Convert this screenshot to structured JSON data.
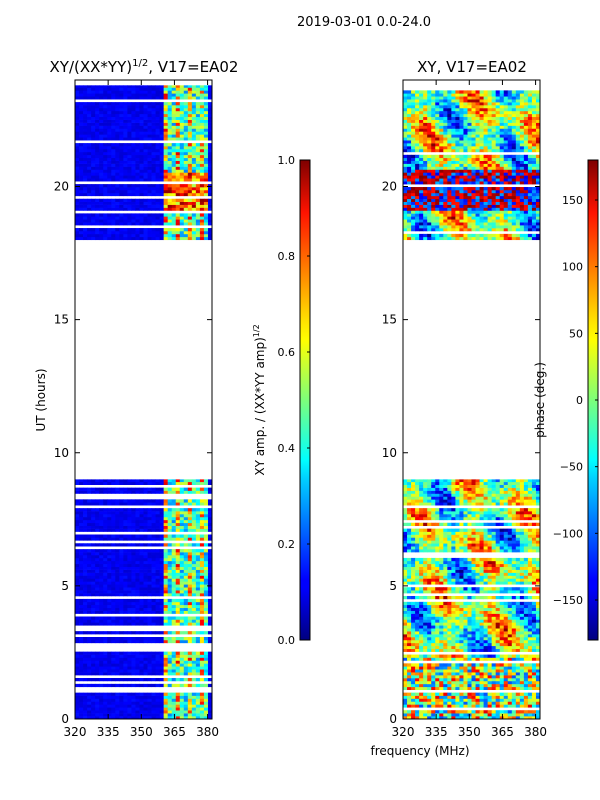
{
  "figure": {
    "suptitle": "2019-03-01 0.0-24.0",
    "xlabel_shared": "frequency (MHz)"
  },
  "chart_data": [
    {
      "type": "heatmap",
      "title_main": "XY/(XX*YY)",
      "title_sup": "1/2",
      "title_rest": ", V17=EA02",
      "xlabel": "",
      "ylabel": "UT (hours)",
      "xlim": [
        320,
        382
      ],
      "ylim": [
        0,
        24
      ],
      "xticks": [
        "320",
        "335",
        "350",
        "365",
        "380"
      ],
      "xtick_values": [
        320,
        335,
        350,
        365,
        380
      ],
      "yticks": [
        "0",
        "5",
        "10",
        "15",
        "20"
      ],
      "ytick_values": [
        0,
        5,
        10,
        15,
        20
      ],
      "data_hour_ranges": [
        [
          0.0,
          9.0
        ],
        [
          18.0,
          23.8
        ]
      ],
      "gap_hour_ranges": [
        [
          9.0,
          18.0
        ]
      ],
      "colorbar": {
        "label_main": "XY amp. / (XX*YY amp)",
        "label_sup": "1/2",
        "range": [
          0.0,
          1.0
        ],
        "ticks": [
          "0.0",
          "0.2",
          "0.4",
          "0.6",
          "0.8",
          "1.0"
        ],
        "tick_values": [
          0.0,
          0.2,
          0.4,
          0.6,
          0.8,
          1.0
        ],
        "colormap": "jet"
      }
    },
    {
      "type": "heatmap",
      "title": "XY, V17=EA02",
      "xlabel": "frequency (MHz)",
      "ylabel": "",
      "xlim": [
        320,
        382
      ],
      "ylim": [
        0,
        24
      ],
      "xticks": [
        "320",
        "335",
        "350",
        "365",
        "380"
      ],
      "xtick_values": [
        320,
        335,
        350,
        365,
        380
      ],
      "yticks": [
        "0",
        "5",
        "10",
        "15",
        "20"
      ],
      "ytick_values": [
        0,
        5,
        10,
        15,
        20
      ],
      "data_hour_ranges": [
        [
          0.0,
          9.0
        ],
        [
          18.0,
          23.8
        ]
      ],
      "gap_hour_ranges": [
        [
          9.0,
          18.0
        ]
      ],
      "colorbar": {
        "label": "phase (deg.)",
        "range": [
          -180,
          180
        ],
        "ticks": [
          "−150",
          "−100",
          "−50",
          "0",
          "50",
          "100",
          "150"
        ],
        "tick_values": [
          -150,
          -100,
          -50,
          0,
          50,
          100,
          150
        ],
        "colormap": "jet"
      }
    }
  ]
}
